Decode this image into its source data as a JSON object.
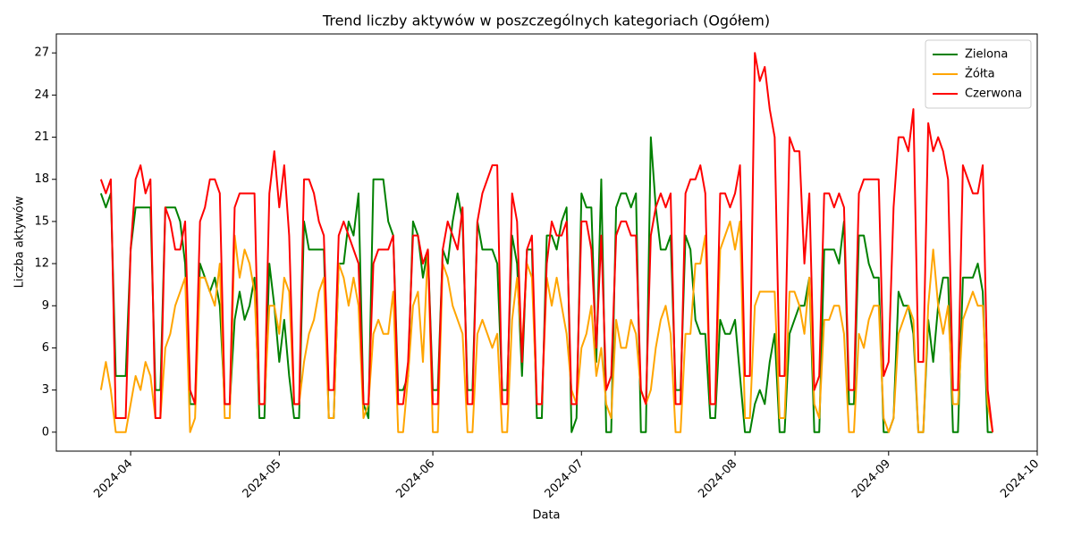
{
  "chart_data": {
    "type": "line",
    "title": "Trend liczby aktywów w poszczególnych kategoriach (Ogółem)",
    "xlabel": "Data",
    "ylabel": "Liczba aktywów",
    "x": [
      "2024-03-26",
      "2024-03-27",
      "2024-03-28",
      "2024-03-29",
      "2024-03-30",
      "2024-03-31",
      "2024-04-01",
      "2024-04-02",
      "2024-04-03",
      "2024-04-04",
      "2024-04-05",
      "2024-04-06",
      "2024-04-07",
      "2024-04-08",
      "2024-04-09",
      "2024-04-10",
      "2024-04-11",
      "2024-04-12",
      "2024-04-13",
      "2024-04-14",
      "2024-04-15",
      "2024-04-16",
      "2024-04-17",
      "2024-04-18",
      "2024-04-19",
      "2024-04-20",
      "2024-04-21",
      "2024-04-22",
      "2024-04-23",
      "2024-04-24",
      "2024-04-25",
      "2024-04-26",
      "2024-04-27",
      "2024-04-28",
      "2024-04-29",
      "2024-04-30",
      "2024-05-01",
      "2024-05-02",
      "2024-05-03",
      "2024-05-04",
      "2024-05-05",
      "2024-05-06",
      "2024-05-07",
      "2024-05-08",
      "2024-05-09",
      "2024-05-10",
      "2024-05-11",
      "2024-05-12",
      "2024-05-13",
      "2024-05-14",
      "2024-05-15",
      "2024-05-16",
      "2024-05-17",
      "2024-05-18",
      "2024-05-19",
      "2024-05-20",
      "2024-05-21",
      "2024-05-22",
      "2024-05-23",
      "2024-05-24",
      "2024-05-25",
      "2024-05-26",
      "2024-05-27",
      "2024-05-28",
      "2024-05-29",
      "2024-05-30",
      "2024-05-31",
      "2024-06-01",
      "2024-06-02",
      "2024-06-03",
      "2024-06-04",
      "2024-06-05",
      "2024-06-06",
      "2024-06-07",
      "2024-06-08",
      "2024-06-09",
      "2024-06-10",
      "2024-06-11",
      "2024-06-12",
      "2024-06-13",
      "2024-06-14",
      "2024-06-15",
      "2024-06-16",
      "2024-06-17",
      "2024-06-18",
      "2024-06-19",
      "2024-06-20",
      "2024-06-21",
      "2024-06-22",
      "2024-06-23",
      "2024-06-24",
      "2024-06-25",
      "2024-06-26",
      "2024-06-27",
      "2024-06-28",
      "2024-06-29",
      "2024-06-30",
      "2024-07-01",
      "2024-07-02",
      "2024-07-03",
      "2024-07-04",
      "2024-07-05",
      "2024-07-06",
      "2024-07-07",
      "2024-07-08",
      "2024-07-09",
      "2024-07-10",
      "2024-07-11",
      "2024-07-12",
      "2024-07-13",
      "2024-07-14",
      "2024-07-15",
      "2024-07-16",
      "2024-07-17",
      "2024-07-18",
      "2024-07-19",
      "2024-07-20",
      "2024-07-21",
      "2024-07-22",
      "2024-07-23",
      "2024-07-24",
      "2024-07-25",
      "2024-07-26",
      "2024-07-27",
      "2024-07-28",
      "2024-07-29",
      "2024-07-30",
      "2024-07-31",
      "2024-08-01",
      "2024-08-02",
      "2024-08-03",
      "2024-08-04",
      "2024-08-05",
      "2024-08-06",
      "2024-08-07",
      "2024-08-08",
      "2024-08-09",
      "2024-08-10",
      "2024-08-11",
      "2024-08-12",
      "2024-08-13",
      "2024-08-14",
      "2024-08-15",
      "2024-08-16",
      "2024-08-17",
      "2024-08-18",
      "2024-08-19",
      "2024-08-20",
      "2024-08-21",
      "2024-08-22",
      "2024-08-23",
      "2024-08-24",
      "2024-08-25",
      "2024-08-26",
      "2024-08-27",
      "2024-08-28",
      "2024-08-29",
      "2024-08-30",
      "2024-08-31",
      "2024-09-01",
      "2024-09-02",
      "2024-09-03",
      "2024-09-04",
      "2024-09-05",
      "2024-09-06",
      "2024-09-07",
      "2024-09-08",
      "2024-09-09",
      "2024-09-10",
      "2024-09-11",
      "2024-09-12",
      "2024-09-13",
      "2024-09-14",
      "2024-09-15",
      "2024-09-16",
      "2024-09-17",
      "2024-09-18",
      "2024-09-19",
      "2024-09-20",
      "2024-09-21",
      "2024-09-22"
    ],
    "series": [
      {
        "name": "Zielona",
        "color": "#008000",
        "values": [
          17,
          16,
          17,
          4,
          4,
          4,
          13,
          16,
          16,
          16,
          16,
          3,
          3,
          16,
          16,
          16,
          15,
          12,
          2,
          2,
          12,
          11,
          10,
          11,
          9,
          2,
          2,
          8,
          10,
          8,
          9,
          11,
          1,
          1,
          12,
          9,
          5,
          8,
          4,
          1,
          1,
          15,
          13,
          13,
          13,
          13,
          1,
          1,
          12,
          12,
          15,
          14,
          17,
          2,
          1,
          18,
          18,
          18,
          15,
          14,
          3,
          3,
          4,
          15,
          14,
          11,
          13,
          3,
          3,
          13,
          12,
          15,
          17,
          15,
          3,
          3,
          15,
          13,
          13,
          13,
          12,
          3,
          3,
          14,
          12,
          4,
          13,
          13,
          1,
          1,
          14,
          14,
          13,
          15,
          16,
          0,
          1,
          17,
          16,
          16,
          5,
          18,
          0,
          0,
          16,
          17,
          17,
          16,
          17,
          0,
          0,
          21,
          16,
          13,
          13,
          14,
          3,
          3,
          14,
          13,
          8,
          7,
          7,
          1,
          1,
          8,
          7,
          7,
          8,
          4,
          0,
          0,
          2,
          3,
          2,
          5,
          7,
          0,
          0,
          7,
          8,
          9,
          9,
          11,
          0,
          0,
          13,
          13,
          13,
          12,
          15,
          2,
          2,
          14,
          14,
          12,
          11,
          11,
          0,
          0,
          1,
          10,
          9,
          9,
          7,
          0,
          0,
          8,
          5,
          9,
          11,
          11,
          0,
          0,
          11,
          11,
          11,
          12,
          10,
          0,
          0
        ]
      },
      {
        "name": "Żółta",
        "color": "#ffa500",
        "values": [
          3,
          5,
          3,
          0,
          0,
          0,
          2,
          4,
          3,
          5,
          4,
          1,
          1,
          6,
          7,
          9,
          10,
          11,
          0,
          1,
          11,
          11,
          10,
          9,
          12,
          1,
          1,
          14,
          11,
          13,
          12,
          10,
          2,
          2,
          9,
          9,
          7,
          11,
          10,
          2,
          2,
          5,
          7,
          8,
          10,
          11,
          1,
          1,
          12,
          11,
          9,
          11,
          9,
          1,
          2,
          7,
          8,
          7,
          7,
          10,
          0,
          0,
          4,
          9,
          10,
          5,
          13,
          0,
          0,
          12,
          11,
          9,
          8,
          7,
          0,
          0,
          7,
          8,
          7,
          6,
          7,
          0,
          0,
          8,
          11,
          6,
          12,
          11,
          2,
          2,
          11,
          9,
          11,
          9,
          7,
          3,
          2,
          6,
          7,
          9,
          4,
          6,
          2,
          1,
          8,
          6,
          6,
          8,
          7,
          3,
          2,
          3,
          6,
          8,
          9,
          7,
          0,
          0,
          7,
          7,
          12,
          12,
          14,
          2,
          2,
          13,
          14,
          15,
          13,
          15,
          1,
          1,
          9,
          10,
          10,
          10,
          10,
          1,
          1,
          10,
          10,
          9,
          7,
          11,
          2,
          1,
          8,
          8,
          9,
          9,
          7,
          0,
          0,
          7,
          6,
          8,
          9,
          9,
          1,
          0,
          1,
          7,
          8,
          9,
          8,
          0,
          0,
          9,
          13,
          9,
          7,
          9,
          2,
          2,
          8,
          9,
          10,
          9,
          9,
          2,
          0
        ]
      },
      {
        "name": "Czerwona",
        "color": "#ff0000",
        "values": [
          18,
          17,
          18,
          1,
          1,
          1,
          13,
          18,
          19,
          17,
          18,
          1,
          1,
          16,
          15,
          13,
          13,
          15,
          3,
          2,
          15,
          16,
          18,
          18,
          17,
          2,
          2,
          16,
          17,
          17,
          17,
          17,
          2,
          2,
          17,
          20,
          16,
          19,
          14,
          2,
          2,
          18,
          18,
          17,
          15,
          14,
          3,
          3,
          14,
          15,
          14,
          13,
          12,
          2,
          2,
          12,
          13,
          13,
          13,
          14,
          2,
          2,
          5,
          14,
          14,
          12,
          13,
          2,
          2,
          13,
          15,
          14,
          13,
          16,
          2,
          2,
          15,
          17,
          18,
          19,
          19,
          2,
          2,
          17,
          15,
          5,
          13,
          14,
          2,
          2,
          12,
          15,
          14,
          14,
          15,
          2,
          2,
          15,
          15,
          13,
          6,
          14,
          3,
          4,
          14,
          15,
          15,
          14,
          14,
          3,
          2,
          14,
          16,
          17,
          16,
          17,
          2,
          2,
          17,
          18,
          18,
          19,
          17,
          2,
          2,
          17,
          17,
          16,
          17,
          19,
          4,
          4,
          27,
          25,
          26,
          23,
          21,
          4,
          4,
          21,
          20,
          20,
          12,
          17,
          3,
          4,
          17,
          17,
          16,
          17,
          16,
          3,
          3,
          17,
          18,
          18,
          18,
          18,
          4,
          5,
          16,
          21,
          21,
          20,
          23,
          5,
          5,
          22,
          20,
          21,
          20,
          18,
          3,
          3,
          19,
          18,
          17,
          17,
          19,
          3,
          0
        ]
      }
    ],
    "xlim": [
      "2024-03-17",
      "2024-10-01"
    ],
    "xticks": [
      {
        "value": "2024-04-01",
        "label": "2024-04"
      },
      {
        "value": "2024-05-01",
        "label": "2024-05"
      },
      {
        "value": "2024-06-01",
        "label": "2024-06"
      },
      {
        "value": "2024-07-01",
        "label": "2024-07"
      },
      {
        "value": "2024-08-01",
        "label": "2024-08"
      },
      {
        "value": "2024-09-01",
        "label": "2024-09"
      },
      {
        "value": "2024-10-01",
        "label": "2024-10"
      }
    ],
    "ylim": [
      -1.35,
      28.35
    ],
    "yticks": [
      0,
      3,
      6,
      9,
      12,
      15,
      18,
      21,
      24,
      27
    ],
    "legend": "upper right"
  }
}
